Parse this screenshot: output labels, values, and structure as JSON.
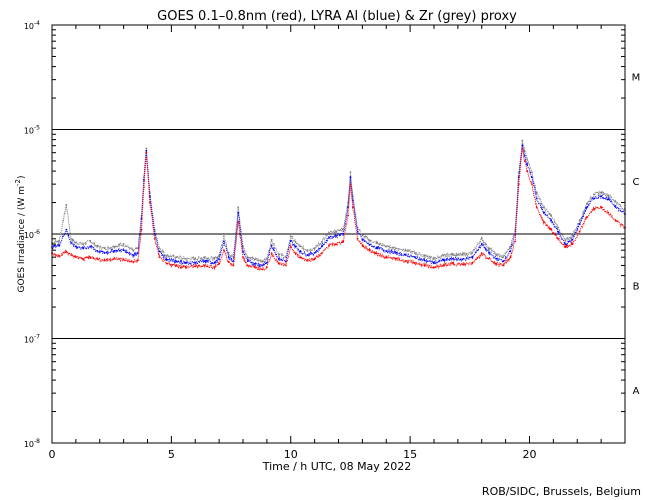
{
  "chart_data": {
    "type": "line",
    "title": "GOES 0.1–0.8nm (red), LYRA Al (blue) & Zr (grey) proxy",
    "xlabel": "Time / h UTC, 08 May 2022",
    "ylabel": "GOES Irradiance / (W m",
    "ylabel_unit_exp": "-2",
    "ylabel_close": ")",
    "credit": "ROB/SIDC, Brussels, Belgium",
    "xlim": [
      0,
      24
    ],
    "x_ticks": [
      0,
      5,
      10,
      15,
      20
    ],
    "x_tick_labels": [
      "0",
      "5",
      "10",
      "15",
      "20"
    ],
    "y_scale": "log",
    "ylim": [
      1e-08,
      0.0001
    ],
    "y_ticks": [
      {
        "value": 0.0001,
        "base": "10",
        "exp": "-4"
      },
      {
        "value": 1e-05,
        "base": "10",
        "exp": "-5"
      },
      {
        "value": 1e-06,
        "base": "10",
        "exp": "-6"
      },
      {
        "value": 1e-07,
        "base": "10",
        "exp": "-7"
      },
      {
        "value": 1e-08,
        "base": "10",
        "exp": "-8"
      }
    ],
    "flare_class_lines": [
      1e-05,
      1e-06,
      1e-07
    ],
    "flare_classes": [
      {
        "label": "M",
        "value": 3.2e-05
      },
      {
        "label": "C",
        "value": 3.2e-06
      },
      {
        "label": "B",
        "value": 3.2e-07
      },
      {
        "label": "A",
        "value": 3.2e-08
      }
    ],
    "series": [
      {
        "name": "GOES 0.1–0.8nm",
        "color": "#ff0000",
        "x": [
          0,
          0.3,
          0.6,
          0.8,
          1.0,
          1.3,
          1.6,
          1.9,
          2.2,
          2.6,
          3.0,
          3.4,
          3.6,
          3.75,
          3.85,
          3.95,
          4.1,
          4.3,
          4.5,
          4.8,
          5.2,
          5.6,
          6.0,
          6.4,
          6.8,
          7.0,
          7.2,
          7.4,
          7.6,
          7.8,
          8.0,
          8.2,
          8.5,
          8.8,
          9.0,
          9.2,
          9.5,
          9.8,
          10.0,
          10.2,
          10.4,
          10.7,
          11.0,
          11.3,
          11.6,
          11.9,
          12.2,
          12.4,
          12.5,
          12.6,
          12.8,
          13.0,
          13.3,
          13.6,
          14.0,
          14.4,
          14.8,
          15.2,
          15.6,
          16.0,
          16.4,
          16.8,
          17.2,
          17.6,
          18.0,
          18.3,
          18.6,
          18.9,
          19.2,
          19.4,
          19.55,
          19.7,
          19.8,
          19.9,
          20.1,
          20.3,
          20.6,
          20.9,
          21.2,
          21.5,
          21.8,
          22.1,
          22.4,
          22.7,
          23.0,
          23.3,
          23.6,
          24.0
        ],
        "y": [
          6.5e-07,
          6.2e-07,
          6.8e-07,
          6.3e-07,
          6e-07,
          5.8e-07,
          6e-07,
          5.8e-07,
          5.6e-07,
          5.8e-07,
          5.7e-07,
          5.4e-07,
          5.6e-07,
          1.1e-06,
          2.8e-06,
          6e-06,
          2e-06,
          9e-07,
          6e-07,
          5.2e-07,
          5e-07,
          4.8e-07,
          4.9e-07,
          5e-07,
          4.8e-07,
          5.2e-07,
          7e-07,
          5.4e-07,
          5e-07,
          1.3e-06,
          6e-07,
          5e-07,
          4.8e-07,
          4.6e-07,
          4.8e-07,
          6.5e-07,
          5.2e-07,
          5e-07,
          7.5e-07,
          6.5e-07,
          6e-07,
          5.6e-07,
          5.8e-07,
          6.5e-07,
          7.8e-07,
          8e-07,
          8.5e-07,
          1.5e-06,
          3e-06,
          1.8e-06,
          9e-07,
          7.8e-07,
          7e-07,
          6.5e-07,
          6e-07,
          5.8e-07,
          5.5e-07,
          5.3e-07,
          5e-07,
          4.8e-07,
          5e-07,
          5.2e-07,
          5.1e-07,
          5.3e-07,
          6.5e-07,
          5.8e-07,
          5.2e-07,
          5e-07,
          6e-07,
          8.5e-07,
          3e-06,
          6.5e-06,
          5e-06,
          4e-06,
          3e-06,
          1.8e-06,
          1.3e-06,
          1.1e-06,
          9e-07,
          7.5e-07,
          8e-07,
          1.05e-06,
          1.45e-06,
          1.75e-06,
          1.8e-06,
          1.6e-06,
          1.35e-06,
          1.15e-06
        ]
      },
      {
        "name": "LYRA Al proxy",
        "color": "#0000ff",
        "x": [
          0,
          0.3,
          0.6,
          0.8,
          1.0,
          1.3,
          1.6,
          1.9,
          2.2,
          2.6,
          3.0,
          3.4,
          3.6,
          3.75,
          3.85,
          3.95,
          4.1,
          4.3,
          4.5,
          4.8,
          5.2,
          5.6,
          6.0,
          6.4,
          6.8,
          7.0,
          7.2,
          7.4,
          7.6,
          7.8,
          8.0,
          8.2,
          8.5,
          8.8,
          9.0,
          9.2,
          9.5,
          9.8,
          10.0,
          10.2,
          10.4,
          10.7,
          11.0,
          11.3,
          11.6,
          11.9,
          12.2,
          12.4,
          12.5,
          12.6,
          12.8,
          13.0,
          13.3,
          13.6,
          14.0,
          14.4,
          14.8,
          15.2,
          15.6,
          16.0,
          16.4,
          16.8,
          17.2,
          17.6,
          18.0,
          18.3,
          18.6,
          18.9,
          19.2,
          19.4,
          19.55,
          19.7,
          19.8,
          19.9,
          20.1,
          20.3,
          20.6,
          20.9,
          21.2,
          21.5,
          21.8,
          22.1,
          22.4,
          22.7,
          23.0,
          23.3,
          23.6,
          24.0
        ],
        "y": [
          7.5e-07,
          7.8e-07,
          1.1e-06,
          8.2e-07,
          7.6e-07,
          7.3e-07,
          7.6e-07,
          6.9e-07,
          6.6e-07,
          6.9e-07,
          7e-07,
          6.3e-07,
          6.6e-07,
          1.4e-06,
          3.3e-06,
          6.3e-06,
          2.3e-06,
          1e-06,
          6.8e-07,
          5.7e-07,
          5.5e-07,
          5.3e-07,
          5.3e-07,
          5.5e-07,
          5.3e-07,
          5.7e-07,
          8.5e-07,
          6e-07,
          5.5e-07,
          1.6e-06,
          6.8e-07,
          5.5e-07,
          5.2e-07,
          5e-07,
          5.3e-07,
          7.8e-07,
          5.8e-07,
          5.5e-07,
          8.6e-07,
          7.6e-07,
          6.8e-07,
          6.3e-07,
          6.6e-07,
          7.6e-07,
          9.3e-07,
          9.6e-07,
          1e-06,
          1.8e-06,
          3.5e-06,
          2.1e-06,
          1.05e-06,
          8.8e-07,
          7.9e-07,
          7.4e-07,
          6.9e-07,
          6.6e-07,
          6.3e-07,
          6e-07,
          5.6e-07,
          5.3e-07,
          5.6e-07,
          5.8e-07,
          5.7e-07,
          6e-07,
          8e-07,
          6.6e-07,
          5.8e-07,
          5.5e-07,
          6.8e-07,
          1e-06,
          3.5e-06,
          7e-06,
          5.6e-06,
          4.6e-06,
          3.5e-06,
          2.2e-06,
          1.6e-06,
          1.35e-06,
          1.05e-06,
          8e-07,
          8.8e-07,
          1.25e-06,
          1.8e-06,
          2.2e-06,
          2.3e-06,
          2.15e-06,
          1.85e-06,
          1.55e-06
        ]
      },
      {
        "name": "LYRA Zr proxy",
        "color": "#808080",
        "x": [
          0,
          0.3,
          0.6,
          0.8,
          1.0,
          1.3,
          1.6,
          1.9,
          2.2,
          2.6,
          3.0,
          3.4,
          3.6,
          3.75,
          3.85,
          3.95,
          4.1,
          4.3,
          4.5,
          4.8,
          5.2,
          5.6,
          6.0,
          6.4,
          6.8,
          7.0,
          7.2,
          7.4,
          7.6,
          7.8,
          8.0,
          8.2,
          8.5,
          8.8,
          9.0,
          9.2,
          9.5,
          9.8,
          10.0,
          10.2,
          10.4,
          10.7,
          11.0,
          11.3,
          11.6,
          11.9,
          12.2,
          12.4,
          12.5,
          12.6,
          12.8,
          13.0,
          13.3,
          13.6,
          14.0,
          14.4,
          14.8,
          15.2,
          15.6,
          16.0,
          16.4,
          16.8,
          17.2,
          17.6,
          18.0,
          18.3,
          18.6,
          18.9,
          19.2,
          19.4,
          19.55,
          19.7,
          19.8,
          19.9,
          20.1,
          20.3,
          20.6,
          20.9,
          21.2,
          21.5,
          21.8,
          22.1,
          22.4,
          22.7,
          23.0,
          23.3,
          23.6,
          24.0
        ],
        "y": [
          8.2e-07,
          8.6e-07,
          1.9e-06,
          9e-07,
          8.3e-07,
          8e-07,
          8.6e-07,
          7.6e-07,
          7.3e-07,
          7.6e-07,
          8e-07,
          6.9e-07,
          7.3e-07,
          1.5e-06,
          3.5e-06,
          6.6e-06,
          2.5e-06,
          1.1e-06,
          7.3e-07,
          6.2e-07,
          6e-07,
          5.8e-07,
          5.8e-07,
          6e-07,
          5.8e-07,
          6.2e-07,
          9.5e-07,
          6.6e-07,
          6e-07,
          1.8e-06,
          7.6e-07,
          6e-07,
          5.7e-07,
          5.5e-07,
          5.8e-07,
          8.8e-07,
          6.4e-07,
          6e-07,
          9.5e-07,
          8.4e-07,
          7.6e-07,
          7e-07,
          7.3e-07,
          8.4e-07,
          1.02e-06,
          1.06e-06,
          1.12e-06,
          2e-06,
          3.9e-06,
          2.3e-06,
          1.15e-06,
          9.7e-07,
          8.7e-07,
          8.2e-07,
          7.6e-07,
          7.3e-07,
          7e-07,
          6.6e-07,
          6.2e-07,
          5.8e-07,
          6.2e-07,
          6.4e-07,
          6.3e-07,
          6.6e-07,
          9e-07,
          7.3e-07,
          6.4e-07,
          6e-07,
          7.6e-07,
          1.1e-06,
          3.9e-06,
          7.8e-06,
          6.2e-06,
          5.2e-06,
          3.9e-06,
          2.5e-06,
          1.8e-06,
          1.5e-06,
          1.15e-06,
          8.6e-07,
          9.6e-07,
          1.35e-06,
          1.95e-06,
          2.4e-06,
          2.5e-06,
          2.35e-06,
          2.05e-06,
          1.7e-06
        ]
      }
    ]
  }
}
